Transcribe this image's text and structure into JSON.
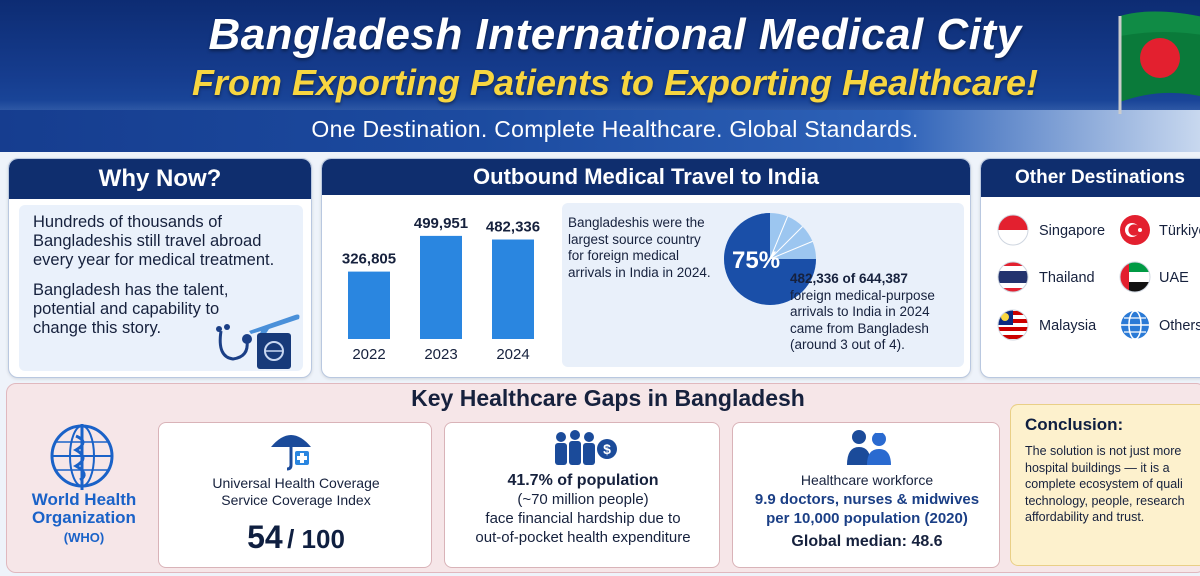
{
  "header": {
    "title": "Bangladesh International Medical City",
    "subtitle": "From Exporting Patients to Exporting Healthcare!",
    "tagline": "One Destination. Complete Healthcare. Global Standards."
  },
  "why_now": {
    "heading": "Why Now?",
    "para1": [
      "Hundreds of thousands of",
      "Bangladeshis still travel abroad",
      "every year for medical treatment."
    ],
    "para2": [
      "Bangladesh has the talent,",
      "potential and capability to",
      "change this story."
    ]
  },
  "outbound": {
    "heading": "Outbound Medical Travel to India",
    "chart_data": {
      "type": "bar",
      "categories": [
        "2022",
        "2023",
        "2024"
      ],
      "values": [
        326805,
        499951,
        482336
      ],
      "value_labels": [
        "326,805",
        "499,951",
        "482,336"
      ],
      "ylim": [
        0,
        560000
      ],
      "grid": false,
      "color": "#2a86e0"
    },
    "source_text": [
      "Bangladeshis were the",
      "largest source country",
      "for foreign medical",
      "arrivals in India in 2024."
    ],
    "pie": {
      "share": 0.75,
      "label": "75%"
    },
    "detail_text": [
      "482,336 of 644,387",
      "foreign medical-purpose",
      "arrivals to India in 2024",
      "came from Bangladesh",
      "(around 3 out of 4)."
    ]
  },
  "other_destinations": {
    "heading": "Other Destinations",
    "items": [
      {
        "label": "Singapore",
        "flag": "singapore-flag-icon"
      },
      {
        "label": "Türkiye",
        "flag": "turkiye-flag-icon"
      },
      {
        "label": "Thailand",
        "flag": "thailand-flag-icon"
      },
      {
        "label": "UAE",
        "flag": "uae-flag-icon"
      },
      {
        "label": "Malaysia",
        "flag": "malaysia-flag-icon"
      },
      {
        "label": "Others",
        "flag": "globe-icon"
      }
    ]
  },
  "gaps": {
    "heading": "Key Healthcare Gaps in Bangladesh",
    "who": {
      "line1": "World Health",
      "line2": "Organization",
      "line3": "(WHO)"
    },
    "uhc": {
      "line1": "Universal Health Coverage",
      "line2": "Service Coverage Index",
      "score": "54",
      "out_of": "/ 100"
    },
    "hardship": {
      "line1": "41.7% of population",
      "line2": "(~70 million people)",
      "line3": "face financial hardship due to",
      "line4": "out-of-pocket health expenditure"
    },
    "workforce": {
      "line1": "Healthcare workforce",
      "line2": "9.9 doctors, nurses & midwives",
      "line3": "per 10,000 population (2020)",
      "line4": "Global median: 48.6"
    },
    "conclusion": {
      "heading": "Conclusion:",
      "lines": [
        "The solution is not just more",
        "hospital buildings — it is a",
        "complete ecosystem of quali",
        "technology, people, research",
        "affordability and trust."
      ]
    }
  },
  "colors": {
    "navy": "#0f2e6e",
    "gold": "#f8d640",
    "bar_blue": "#2a86e0"
  }
}
